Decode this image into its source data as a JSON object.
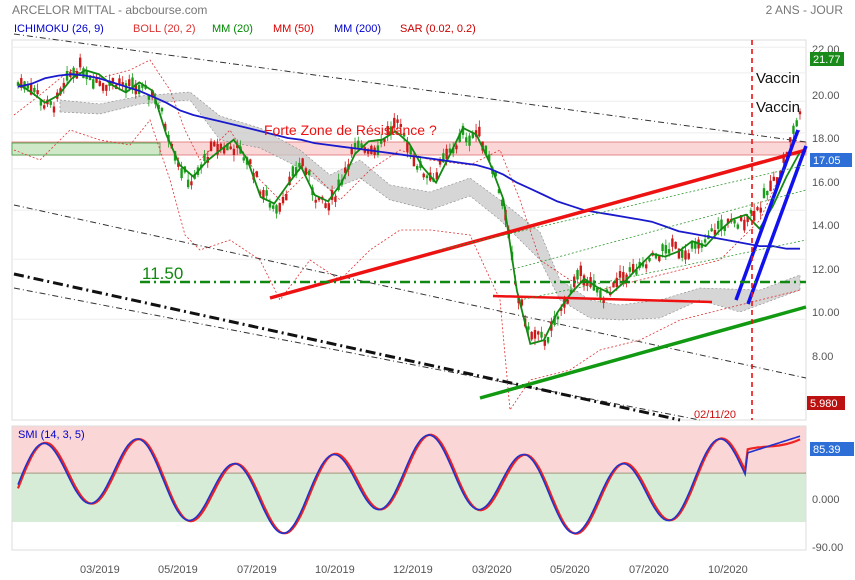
{
  "header": {
    "title": "ARCELOR MITTAL - abcbourse.com",
    "period": "2 ANS - JOUR"
  },
  "legend": [
    {
      "label": "ICHIMOKU (26, 9)",
      "color": "#0000cc"
    },
    {
      "label": "BOLL (20, 2)",
      "color": "#dd3333"
    },
    {
      "label": "MM (20)",
      "color": "#008800"
    },
    {
      "label": "MM (50)",
      "color": "#dd0000"
    },
    {
      "label": "MM (200)",
      "color": "#0000cc"
    },
    {
      "label": "SAR (0.02, 0.2)",
      "color": "#cc0000"
    }
  ],
  "annotations": {
    "resistance": "Forte Zone de Résistance ?",
    "support_level": "11.50",
    "vaccin_1": "Vaccin",
    "vaccin_2": "Vaccin",
    "event_date": "02/11/20"
  },
  "badges": {
    "high_value": "21.77",
    "last_value": "17.05",
    "low_value": "5.980",
    "smi_value": "85.39"
  },
  "colors": {
    "up_candle": "#1a9e1a",
    "down_candle": "#cc1a1a",
    "mm20": "#128a12",
    "mm200": "#1a1acc",
    "trend_red": "#ee1111",
    "trend_green": "#119911",
    "trend_blue": "#1111ee",
    "resistance_zone": "#fbd6d6"
  },
  "chart_data": [
    {
      "type": "candlestick",
      "name": "price",
      "x_ticks": [
        "03/2019",
        "05/2019",
        "07/2019",
        "10/2019",
        "12/2019",
        "03/2020",
        "05/2020",
        "07/2020",
        "10/2020"
      ],
      "y_ticks": [
        "22.00",
        "20.00",
        "18.00",
        "16.00",
        "14.00",
        "12.00",
        "10.00",
        "8.00"
      ],
      "ylim": [
        5.5,
        22.6
      ],
      "scale": "log",
      "grid": true,
      "series": [
        {
          "name": "MM (20)",
          "values": [
            19.2,
            18.6,
            17.9,
            18.4,
            19.6,
            20.2,
            19.9,
            19.1,
            18.6,
            19.3,
            18.7,
            15.9,
            14.2,
            13.6,
            14.4,
            15.0,
            15.6,
            14.5,
            12.6,
            12.3,
            13.2,
            14.1,
            12.7,
            12.4,
            13.3,
            14.8,
            15.5,
            15.6,
            16.1,
            15.4,
            14.1,
            13.3,
            14.7,
            16.3,
            15.9,
            14.3,
            12.5,
            8.9,
            7.3,
            7.4,
            8.2,
            8.8,
            9.3,
            9.0,
            8.8,
            9.2,
            9.7,
            10.2,
            10.1,
            10.3,
            10.7,
            10.5,
            11.1,
            11.6,
            11.8,
            11.2,
            12.2,
            13.6,
            14.9
          ]
        },
        {
          "name": "MM (200)",
          "values": [
            19.0,
            19.2,
            19.6,
            19.8,
            19.9,
            19.8,
            19.6,
            19.3,
            19.0,
            18.7,
            18.3,
            17.9,
            17.4,
            17.1,
            16.9,
            16.7,
            16.5,
            16.3,
            16.1,
            15.9,
            15.7,
            15.6,
            15.4,
            15.3,
            15.2,
            15.1,
            15.0,
            14.9,
            14.8,
            14.7,
            14.6,
            14.5,
            14.4,
            14.3,
            14.2,
            14.0,
            13.7,
            13.3,
            13.0,
            12.7,
            12.4,
            12.2,
            12.0,
            11.9,
            11.8,
            11.7,
            11.6,
            11.5,
            11.3,
            11.1,
            11.0,
            10.9,
            10.8,
            10.7,
            10.6,
            10.5,
            10.5,
            10.4,
            10.4
          ]
        }
      ]
    },
    {
      "type": "line",
      "name": "SMI (14, 3, 5)",
      "y_ticks": [
        "0.000",
        "-90.00"
      ],
      "ylim": [
        -92,
        98
      ]
    }
  ]
}
